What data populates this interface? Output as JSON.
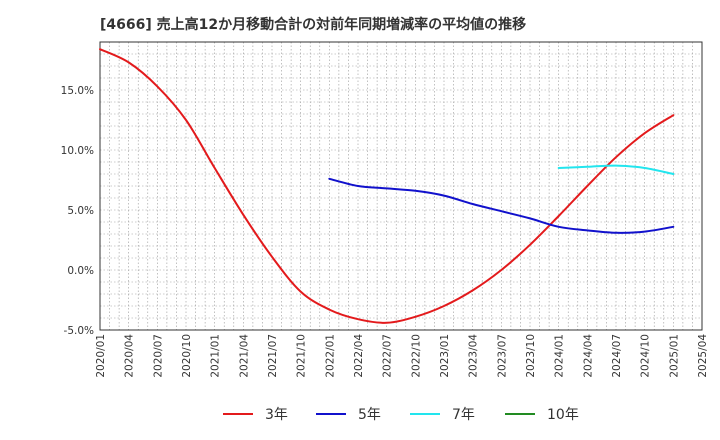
{
  "chart_data": {
    "type": "line",
    "title": "[4666]  売上高12か月移動合計の対前年同期増減率の平均値の推移",
    "xlabel": "",
    "ylabel": "",
    "x_ticks": [
      "2020/01",
      "2020/04",
      "2020/07",
      "2020/10",
      "2021/01",
      "2021/04",
      "2021/07",
      "2021/10",
      "2022/01",
      "2022/04",
      "2022/07",
      "2022/10",
      "2023/01",
      "2023/04",
      "2023/07",
      "2023/10",
      "2024/01",
      "2024/04",
      "2024/07",
      "2024/10",
      "2025/01",
      "2025/04"
    ],
    "y_ticks": [
      "-5.0%",
      "0.0%",
      "5.0%",
      "10.0%",
      "15.0%"
    ],
    "ylim": [
      -5.0,
      19.0
    ],
    "x_unit": "months since 2020/01",
    "xlim": [
      0,
      63
    ],
    "grid": true,
    "legend_position": "bottom",
    "series": [
      {
        "name": "3年",
        "color": "#e31a1c",
        "x": [
          0,
          3,
          6,
          9,
          12,
          15,
          18,
          21,
          24,
          27,
          30,
          33,
          36,
          39,
          42,
          45,
          48,
          51,
          54,
          57,
          60
        ],
        "y": [
          18.4,
          17.3,
          15.3,
          12.5,
          8.5,
          4.6,
          1.1,
          -1.8,
          -3.3,
          -4.1,
          -4.4,
          -3.9,
          -3.0,
          -1.7,
          0.0,
          2.1,
          4.5,
          7.0,
          9.4,
          11.4,
          12.9
        ]
      },
      {
        "name": "5年",
        "color": "#1111cc",
        "x": [
          24,
          27,
          30,
          33,
          36,
          39,
          42,
          45,
          48,
          51,
          54,
          57,
          60
        ],
        "y": [
          7.6,
          7.0,
          6.8,
          6.6,
          6.2,
          5.5,
          4.9,
          4.3,
          3.6,
          3.3,
          3.1,
          3.2,
          3.6
        ]
      },
      {
        "name": "7年",
        "color": "#22e5ee",
        "x": [
          48,
          51,
          54,
          57,
          60
        ],
        "y": [
          8.5,
          8.6,
          8.7,
          8.5,
          8.0
        ]
      },
      {
        "name": "10年",
        "color": "#228b22",
        "x": [],
        "y": []
      }
    ]
  }
}
